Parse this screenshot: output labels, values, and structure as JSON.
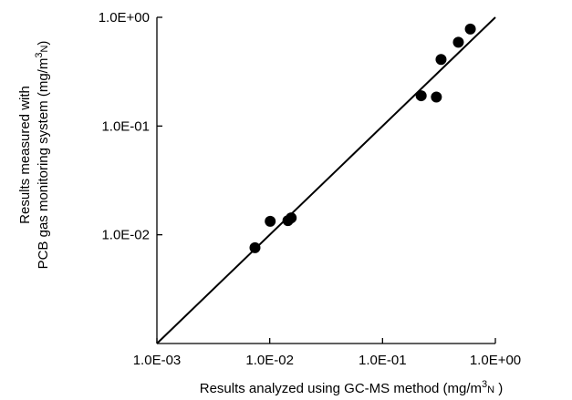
{
  "chart_data": {
    "type": "scatter",
    "x_scale": "log",
    "y_scale": "log",
    "xlim": [
      0.001,
      1.0
    ],
    "ylim": [
      0.001,
      1.0
    ],
    "grid": false,
    "x_ticks": [
      {
        "value": 0.001,
        "label": "1.0E-03"
      },
      {
        "value": 0.01,
        "label": "1.0E-02"
      },
      {
        "value": 0.1,
        "label": "1.0E-01"
      },
      {
        "value": 1.0,
        "label": "1.0E+00"
      }
    ],
    "y_ticks": [
      {
        "value": 0.01,
        "label": "1.0E-02"
      },
      {
        "value": 0.1,
        "label": "1.0E-01"
      },
      {
        "value": 1.0,
        "label": "1.0E+00"
      }
    ],
    "xlabel": {
      "before": "Results analyzed using GC-MS method (mg/m",
      "sup": "3",
      "sub": "N",
      "after": " )"
    },
    "ylabel": {
      "line1": "Results measured with",
      "line2_before": "PCB gas monitoring system (mg/m",
      "line2_sup": "3",
      "line2_sub": "N",
      "line2_after": ")"
    },
    "reference_line": {
      "x": [
        0.001,
        1.0
      ],
      "y": [
        0.001,
        1.0
      ]
    },
    "points": [
      {
        "x": 0.0074,
        "y": 0.0076
      },
      {
        "x": 0.0101,
        "y": 0.0133
      },
      {
        "x": 0.0145,
        "y": 0.0135
      },
      {
        "x": 0.0155,
        "y": 0.0143
      },
      {
        "x": 0.22,
        "y": 0.19
      },
      {
        "x": 0.3,
        "y": 0.185
      },
      {
        "x": 0.33,
        "y": 0.41
      },
      {
        "x": 0.47,
        "y": 0.59
      },
      {
        "x": 0.6,
        "y": 0.78
      }
    ],
    "colors": {
      "marker": "#000000",
      "line": "#000000",
      "axis": "#000000"
    }
  }
}
